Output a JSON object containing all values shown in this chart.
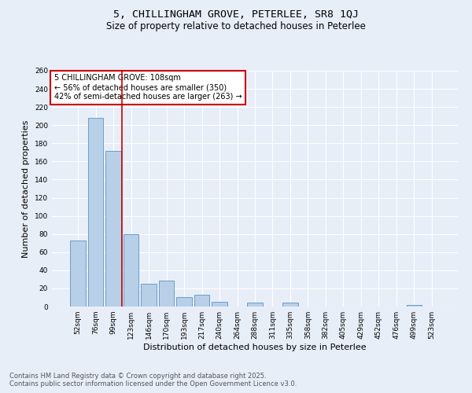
{
  "title": "5, CHILLINGHAM GROVE, PETERLEE, SR8 1QJ",
  "subtitle": "Size of property relative to detached houses in Peterlee",
  "xlabel": "Distribution of detached houses by size in Peterlee",
  "ylabel": "Number of detached properties",
  "categories": [
    "52sqm",
    "76sqm",
    "99sqm",
    "123sqm",
    "146sqm",
    "170sqm",
    "193sqm",
    "217sqm",
    "240sqm",
    "264sqm",
    "288sqm",
    "311sqm",
    "335sqm",
    "358sqm",
    "382sqm",
    "405sqm",
    "429sqm",
    "452sqm",
    "476sqm",
    "499sqm",
    "523sqm"
  ],
  "values": [
    73,
    208,
    172,
    80,
    25,
    29,
    10,
    13,
    5,
    0,
    4,
    0,
    4,
    0,
    0,
    0,
    0,
    0,
    0,
    2,
    0
  ],
  "bar_color": "#b8cfe8",
  "bar_edge_color": "#6a9dc8",
  "vline_x": 2.5,
  "vline_color": "#cc0000",
  "annotation_text": "5 CHILLINGHAM GROVE: 108sqm\n← 56% of detached houses are smaller (350)\n42% of semi-detached houses are larger (263) →",
  "annotation_box_color": "#ffffff",
  "annotation_box_edge": "#cc0000",
  "ylim": [
    0,
    260
  ],
  "yticks": [
    0,
    20,
    40,
    60,
    80,
    100,
    120,
    140,
    160,
    180,
    200,
    220,
    240,
    260
  ],
  "background_color": "#e8eef8",
  "grid_color": "#ffffff",
  "footer_line1": "Contains HM Land Registry data © Crown copyright and database right 2025.",
  "footer_line2": "Contains public sector information licensed under the Open Government Licence v3.0.",
  "title_fontsize": 9.5,
  "subtitle_fontsize": 8.5,
  "axis_label_fontsize": 8,
  "tick_fontsize": 6.5,
  "annotation_fontsize": 7,
  "footer_fontsize": 6
}
